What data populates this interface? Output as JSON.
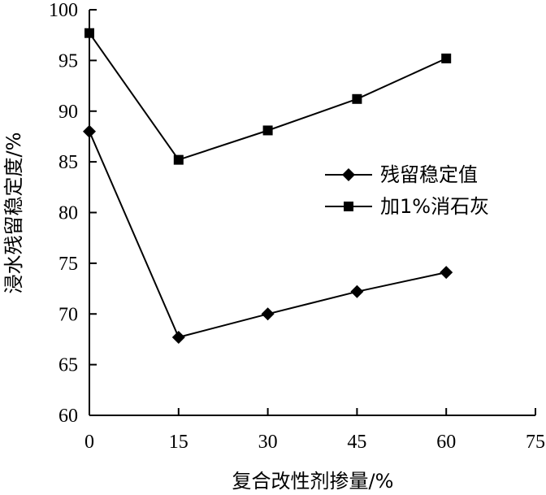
{
  "chart_data": {
    "type": "line",
    "title": "",
    "xlabel": "复合改性剂掺量/%",
    "ylabel": "浸水残留稳定度/%",
    "xlim": [
      0,
      75
    ],
    "ylim": [
      60,
      100
    ],
    "xticks": [
      "0",
      "15",
      "30",
      "45",
      "60",
      "75"
    ],
    "yticks": [
      "60",
      "65",
      "70",
      "75",
      "80",
      "85",
      "90",
      "95",
      "100"
    ],
    "x": [
      0,
      15,
      30,
      45,
      60
    ],
    "series": [
      {
        "name": "残留稳定值",
        "marker": "diamond",
        "values": [
          88.0,
          67.7,
          70.0,
          72.2,
          74.1
        ]
      },
      {
        "name": "加1%消石灰",
        "marker": "square",
        "values": [
          97.7,
          85.2,
          88.1,
          91.2,
          95.2
        ]
      }
    ],
    "legend_position": "right",
    "grid": false,
    "color": "#000000"
  }
}
